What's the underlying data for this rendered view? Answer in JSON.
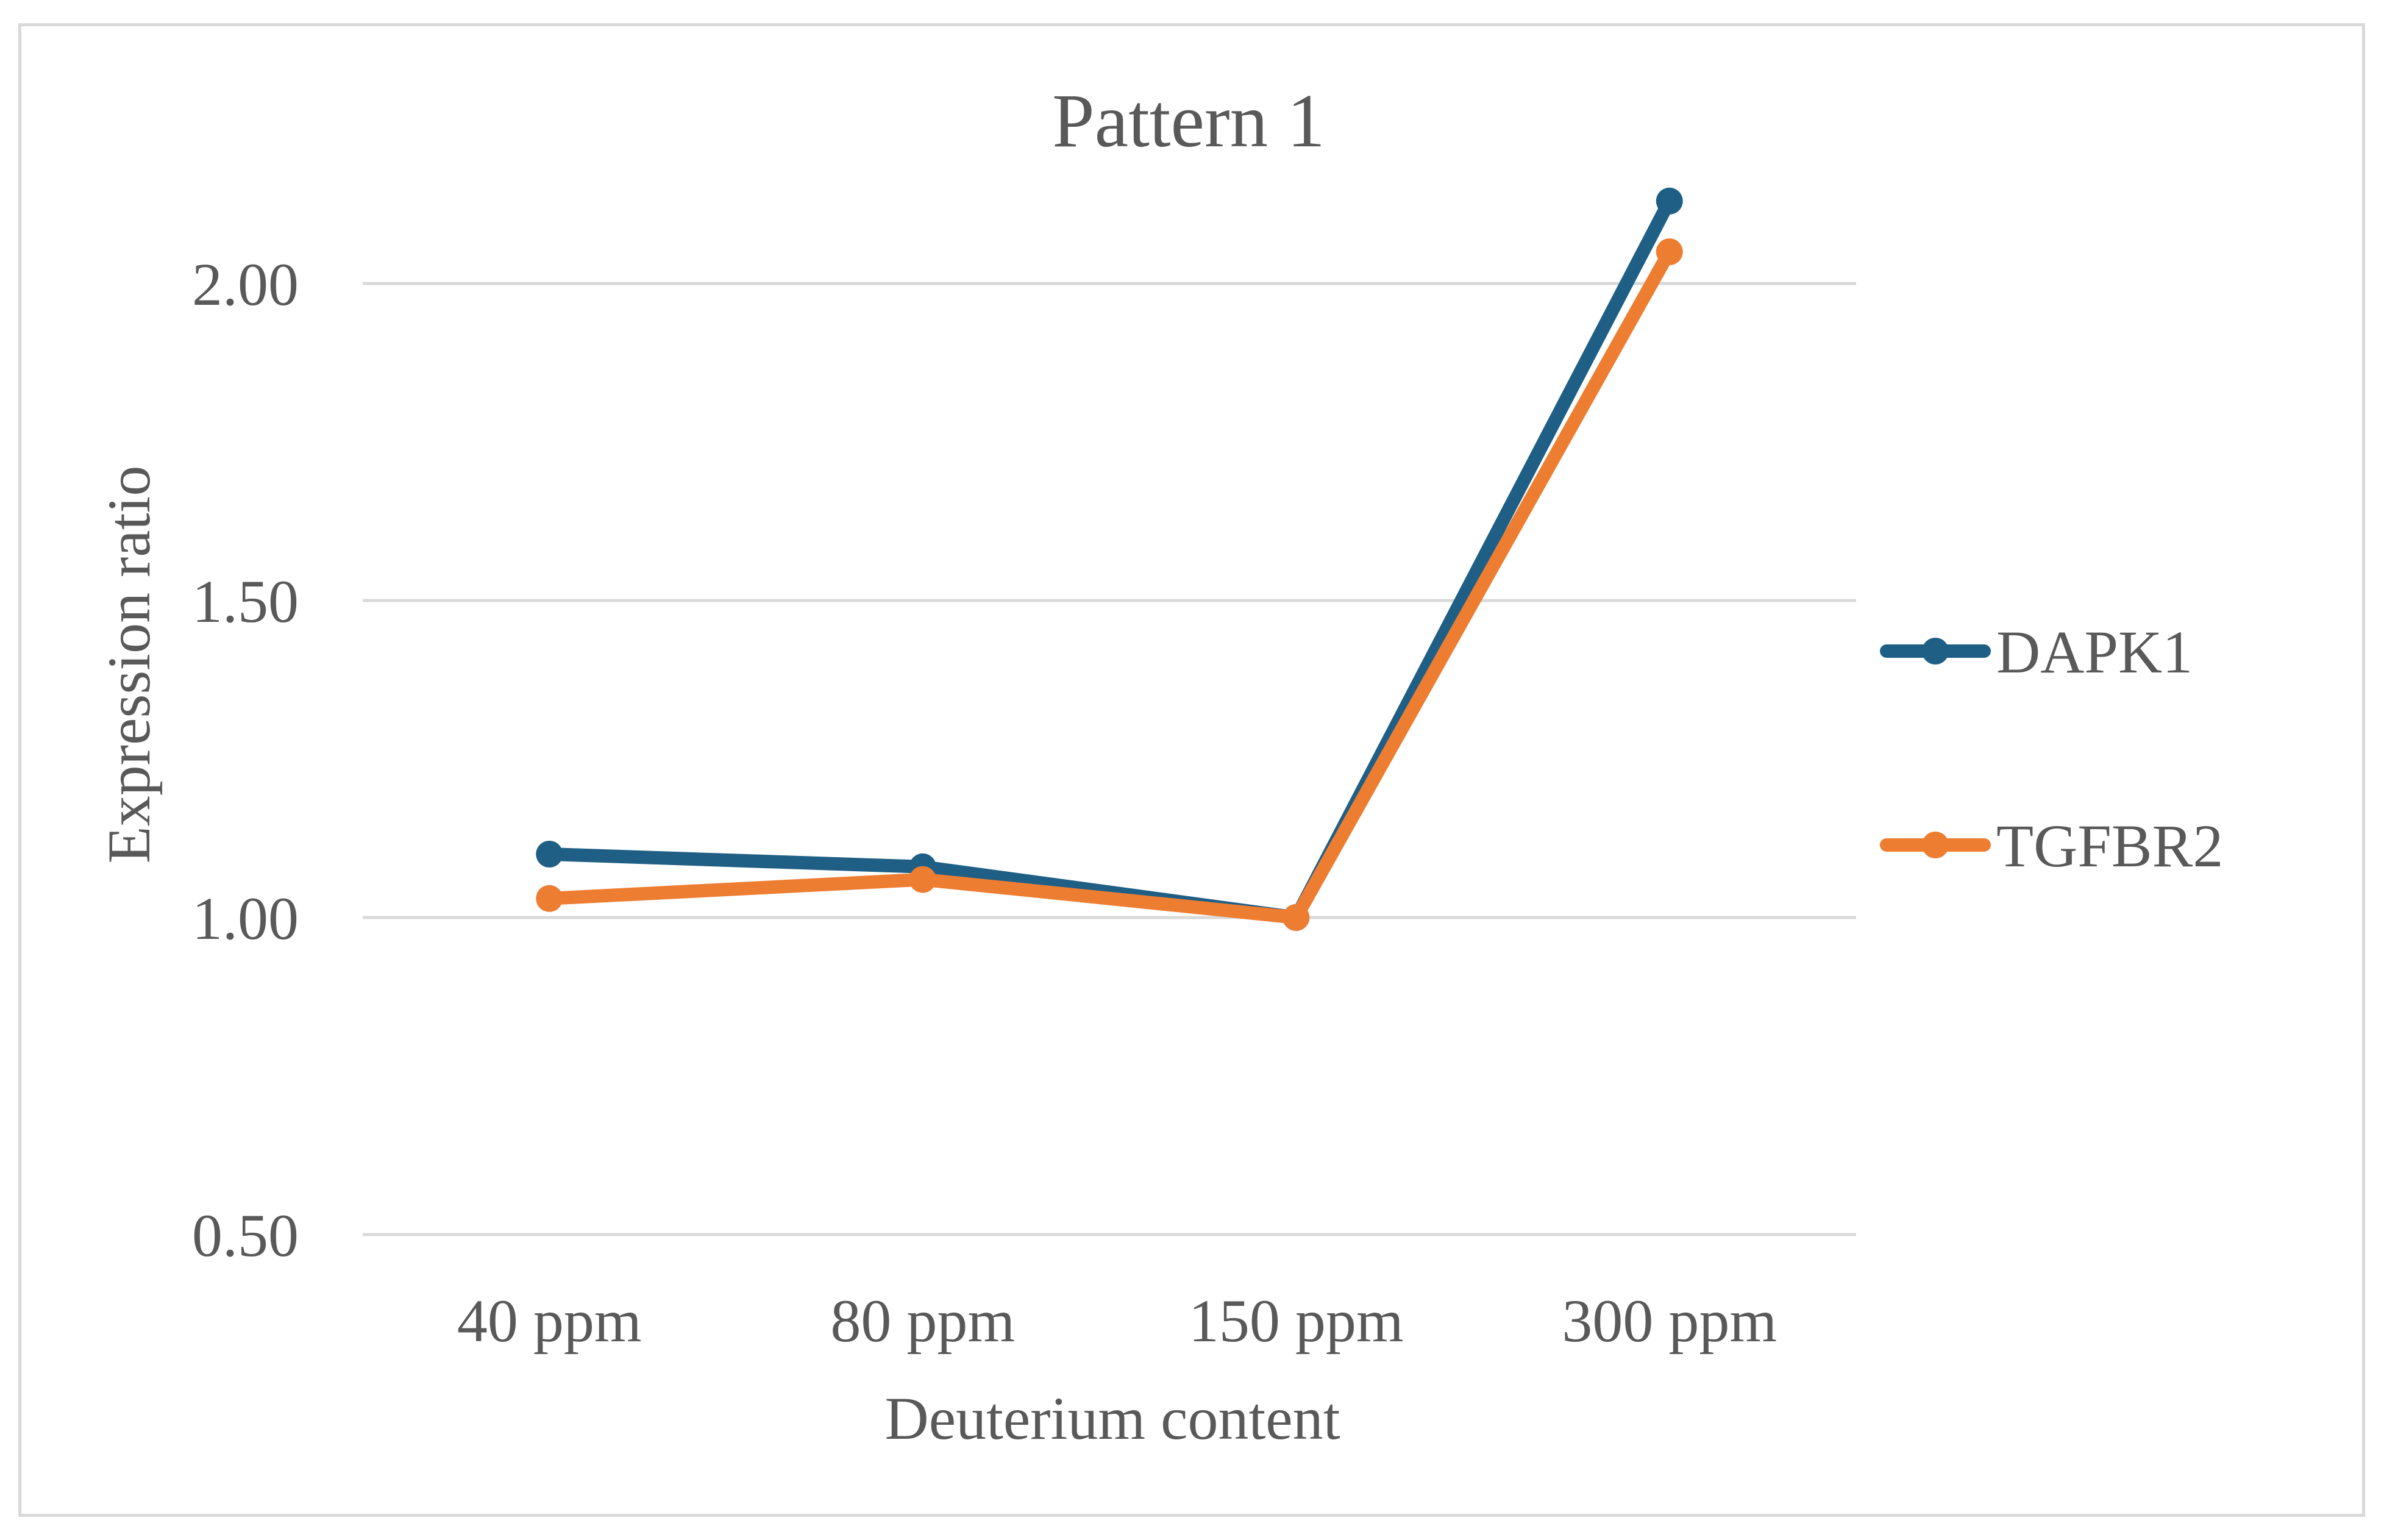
{
  "chart_data": {
    "type": "line",
    "title": "Pattern 1",
    "xlabel": "Deuterium content",
    "ylabel": "Expression ratio",
    "categories": [
      "40 ppm",
      "80 ppm",
      "150 ppm",
      "300 ppm"
    ],
    "ylim": [
      0.5,
      2.2
    ],
    "yticks": [
      "0.50",
      "1.00",
      "1.50",
      "2.00"
    ],
    "ytick_values": [
      0.5,
      1.0,
      1.5,
      2.0
    ],
    "grid": true,
    "legend_position": "right",
    "series": [
      {
        "name": "DAPK1",
        "values": [
          1.1,
          1.08,
          1.0,
          2.13
        ],
        "color": "#1f5f85"
      },
      {
        "name": "TGFBR2",
        "values": [
          1.03,
          1.06,
          1.0,
          2.05
        ],
        "color": "#ed7d31"
      }
    ]
  }
}
